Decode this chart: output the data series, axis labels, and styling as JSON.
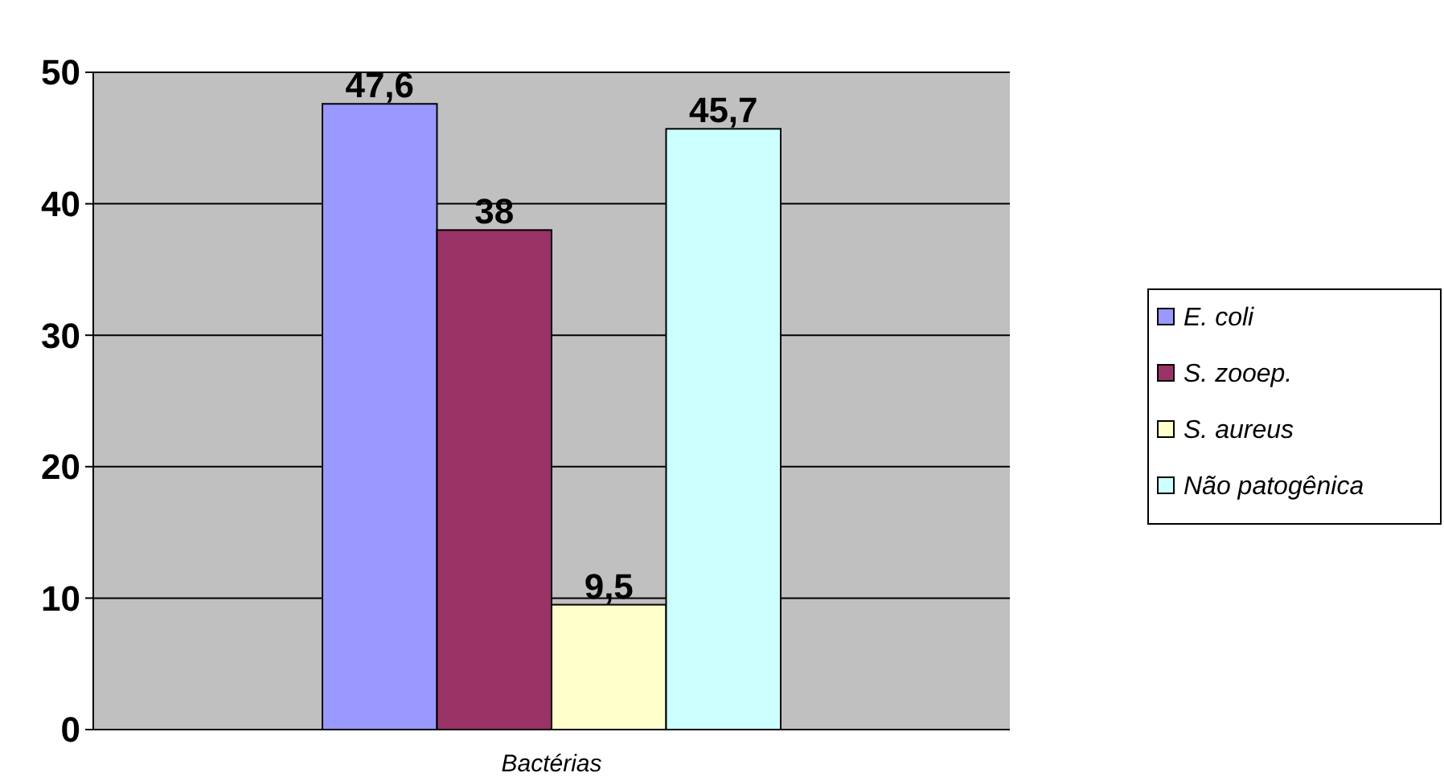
{
  "chart_data": {
    "type": "bar",
    "xlabel": "Bactérias",
    "categories": [
      null
    ],
    "series": [
      {
        "name": "E. coli",
        "color": "#9999ff",
        "values": [
          47.6
        ],
        "value_labels": [
          "47,6"
        ]
      },
      {
        "name": "S. zooep.",
        "color": "#993366",
        "values": [
          38
        ],
        "value_labels": [
          "38"
        ]
      },
      {
        "name": "S. aureus",
        "color": "#ffffcc",
        "values": [
          9.5
        ],
        "value_labels": [
          "9,5"
        ]
      },
      {
        "name": "Não patogênica",
        "color": "#ccffff",
        "values": [
          45.7
        ],
        "value_labels": [
          "45,7"
        ]
      }
    ],
    "ylim": [
      0,
      50
    ],
    "yticks": [
      0,
      10,
      20,
      30,
      40,
      50
    ],
    "grid": "y",
    "legend": "right"
  }
}
